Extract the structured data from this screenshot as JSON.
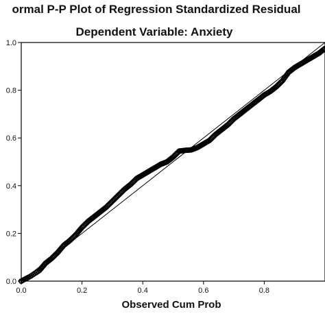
{
  "chart_data": {
    "type": "scatter",
    "title": "ormal P-P Plot of Regression Standardized Residual",
    "subtitle": "Dependent Variable: Anxiety",
    "xlabel": "Observed Cum Prob",
    "ylabel": "",
    "xlim": [
      0,
      1
    ],
    "ylim": [
      0,
      1
    ],
    "x_ticks": [
      "0.0",
      "0.2",
      "0.4",
      "0.6",
      "0.8"
    ],
    "y_ticks": [
      "0.0",
      "0.2",
      "0.4",
      "0.6",
      "0.8",
      "1.0"
    ],
    "reference_line": {
      "from": [
        0,
        0
      ],
      "to": [
        1,
        1
      ]
    },
    "series": [
      {
        "marker": "open-circle",
        "color": "#000000",
        "points": [
          [
            0.0,
            0.0
          ],
          [
            0.03,
            0.02
          ],
          [
            0.06,
            0.045
          ],
          [
            0.08,
            0.075
          ],
          [
            0.1,
            0.095
          ],
          [
            0.12,
            0.12
          ],
          [
            0.14,
            0.15
          ],
          [
            0.16,
            0.17
          ],
          [
            0.18,
            0.195
          ],
          [
            0.2,
            0.225
          ],
          [
            0.22,
            0.25
          ],
          [
            0.24,
            0.27
          ],
          [
            0.26,
            0.29
          ],
          [
            0.28,
            0.31
          ],
          [
            0.3,
            0.335
          ],
          [
            0.32,
            0.36
          ],
          [
            0.34,
            0.385
          ],
          [
            0.36,
            0.405
          ],
          [
            0.38,
            0.43
          ],
          [
            0.4,
            0.445
          ],
          [
            0.42,
            0.46
          ],
          [
            0.44,
            0.475
          ],
          [
            0.46,
            0.49
          ],
          [
            0.48,
            0.5
          ],
          [
            0.5,
            0.52
          ],
          [
            0.52,
            0.545
          ],
          [
            0.54,
            0.548
          ],
          [
            0.56,
            0.55
          ],
          [
            0.58,
            0.56
          ],
          [
            0.6,
            0.575
          ],
          [
            0.62,
            0.59
          ],
          [
            0.64,
            0.615
          ],
          [
            0.66,
            0.635
          ],
          [
            0.68,
            0.655
          ],
          [
            0.7,
            0.68
          ],
          [
            0.72,
            0.7
          ],
          [
            0.74,
            0.72
          ],
          [
            0.76,
            0.74
          ],
          [
            0.78,
            0.76
          ],
          [
            0.8,
            0.78
          ],
          [
            0.82,
            0.795
          ],
          [
            0.84,
            0.815
          ],
          [
            0.86,
            0.84
          ],
          [
            0.88,
            0.875
          ],
          [
            0.9,
            0.895
          ],
          [
            0.92,
            0.91
          ],
          [
            0.94,
            0.925
          ],
          [
            0.96,
            0.94
          ],
          [
            0.98,
            0.955
          ],
          [
            1.0,
            0.975
          ]
        ]
      }
    ]
  }
}
